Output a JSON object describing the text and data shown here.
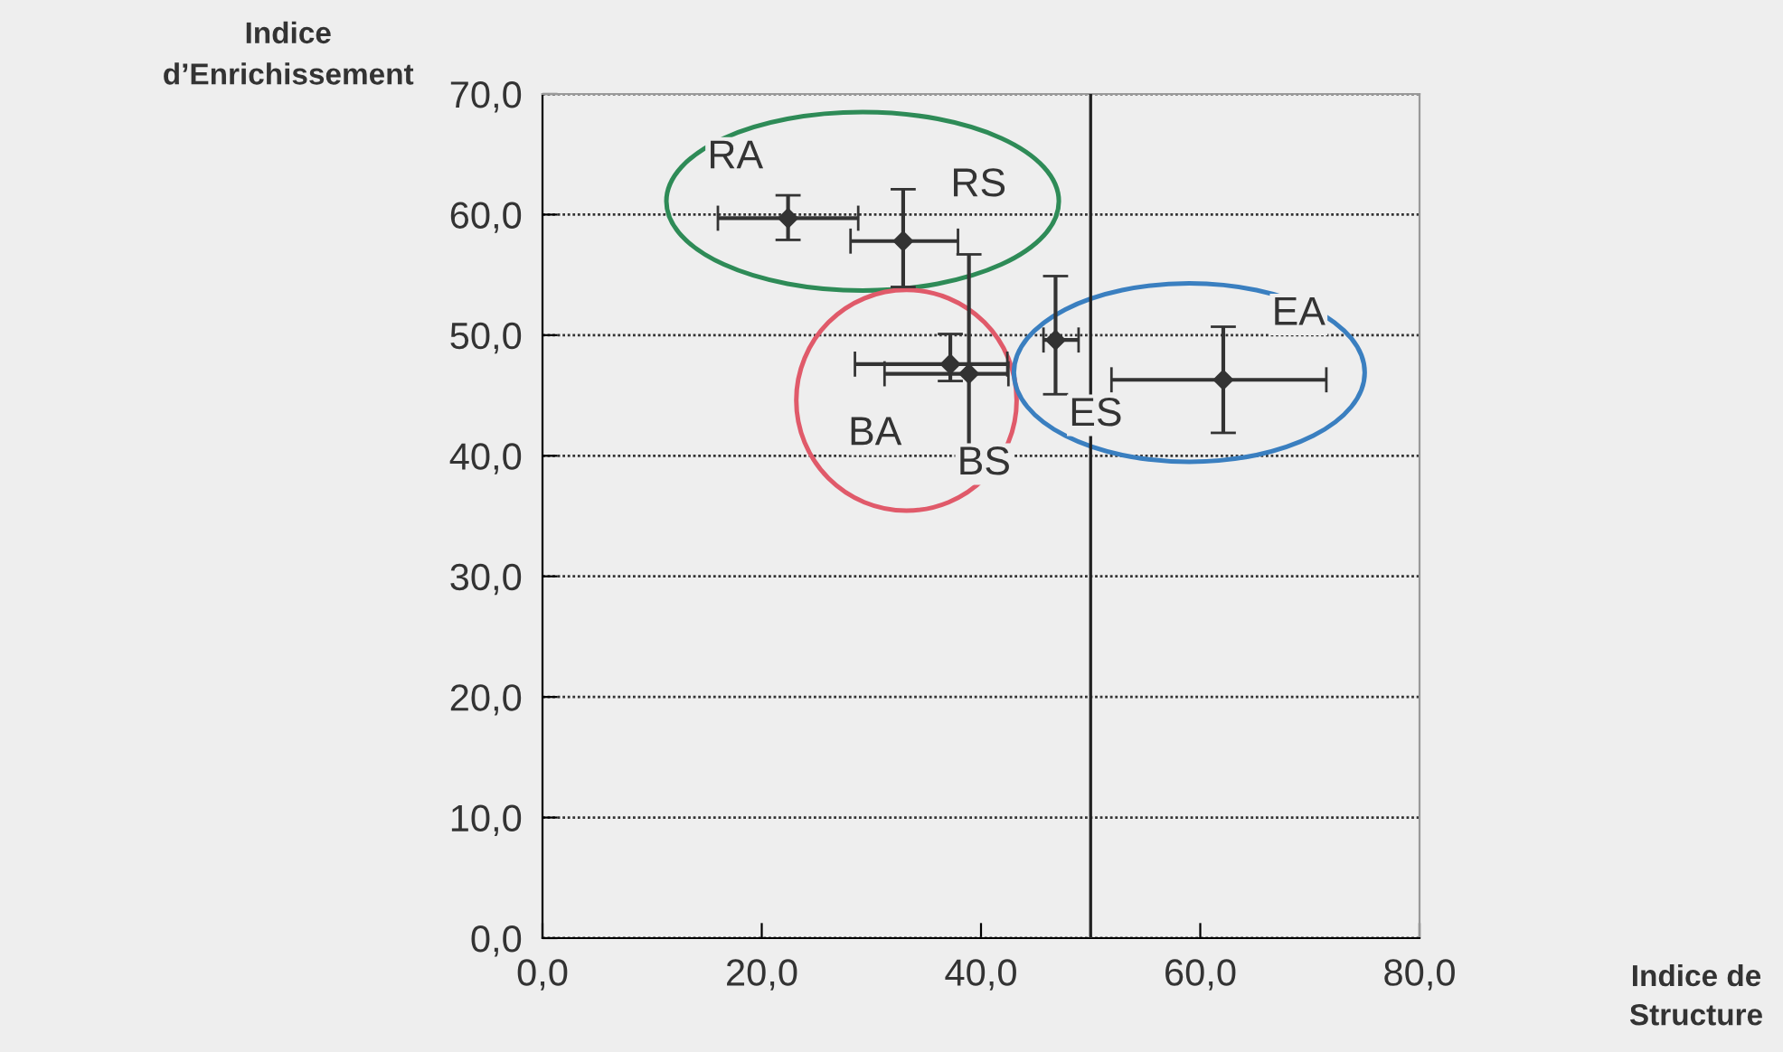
{
  "chart_data": {
    "type": "scatter",
    "annotations": [
      "Indice de\nStructure"
    ],
    "ylabel": "Indice\nd’Enrichissement",
    "series": [
      {
        "name": "RA",
        "color": "#333333",
        "x": [
          22.4
        ],
        "values": [
          59.7
        ],
        "errors": [
          [
            57.9,
            61.6
          ]
        ],
        "xerrors": [
          [
            16.0,
            28.8
          ]
        ]
      },
      {
        "name": "RS",
        "color": "#333333",
        "x": [
          32.9
        ],
        "values": [
          57.8
        ],
        "errors": [
          [
            54.0,
            62.1
          ]
        ],
        "xerrors": [
          [
            28.1,
            37.9
          ]
        ]
      },
      {
        "name": "BA",
        "color": "#333333",
        "x": [
          37.2
        ],
        "values": [
          47.6
        ],
        "errors": [
          [
            46.2,
            50.1
          ]
        ],
        "xerrors": [
          [
            28.5,
            42.4
          ]
        ]
      },
      {
        "name": "BS",
        "color": "#333333",
        "x": [
          38.9
        ],
        "values": [
          46.8
        ],
        "errors": [
          [
            38.0,
            56.7
          ]
        ],
        "xerrors": [
          [
            31.2,
            42.5
          ]
        ]
      },
      {
        "name": "ES",
        "color": "#333333",
        "x": [
          46.8
        ],
        "values": [
          49.6
        ],
        "errors": [
          [
            45.1,
            54.9
          ]
        ],
        "xerrors": [
          [
            45.7,
            48.9
          ]
        ]
      },
      {
        "name": "EA",
        "color": "#333333",
        "x": [
          62.1
        ],
        "values": [
          46.3
        ],
        "errors": [
          [
            41.9,
            50.7
          ]
        ],
        "xerrors": [
          [
            51.9,
            71.5
          ]
        ]
      }
    ],
    "marker": "diamond",
    "grid": "y",
    "xlim": [
      0,
      80
    ],
    "xticks": [
      {
        "value": 0,
        "label": "0,0"
      },
      {
        "value": 20,
        "label": "20,0"
      },
      {
        "value": 40,
        "label": "40,0"
      },
      {
        "value": 60,
        "label": "60,0"
      },
      {
        "value": 80,
        "label": "80,0"
      }
    ],
    "ylim": [
      0,
      70
    ],
    "yticks": [
      {
        "value": 0,
        "label": "0,0"
      },
      {
        "value": 10,
        "label": "10,0"
      },
      {
        "value": 20,
        "label": "20,0"
      },
      {
        "value": 30,
        "label": "30,0"
      },
      {
        "value": 40,
        "label": "40,0"
      },
      {
        "value": 50,
        "label": "50,0"
      },
      {
        "value": 60,
        "label": "60,0"
      },
      {
        "value": 70,
        "label": "70,0"
      }
    ],
    "ref_lines": [
      {
        "axis": "x",
        "value": 50,
        "color": "#222222"
      }
    ]
  }
}
